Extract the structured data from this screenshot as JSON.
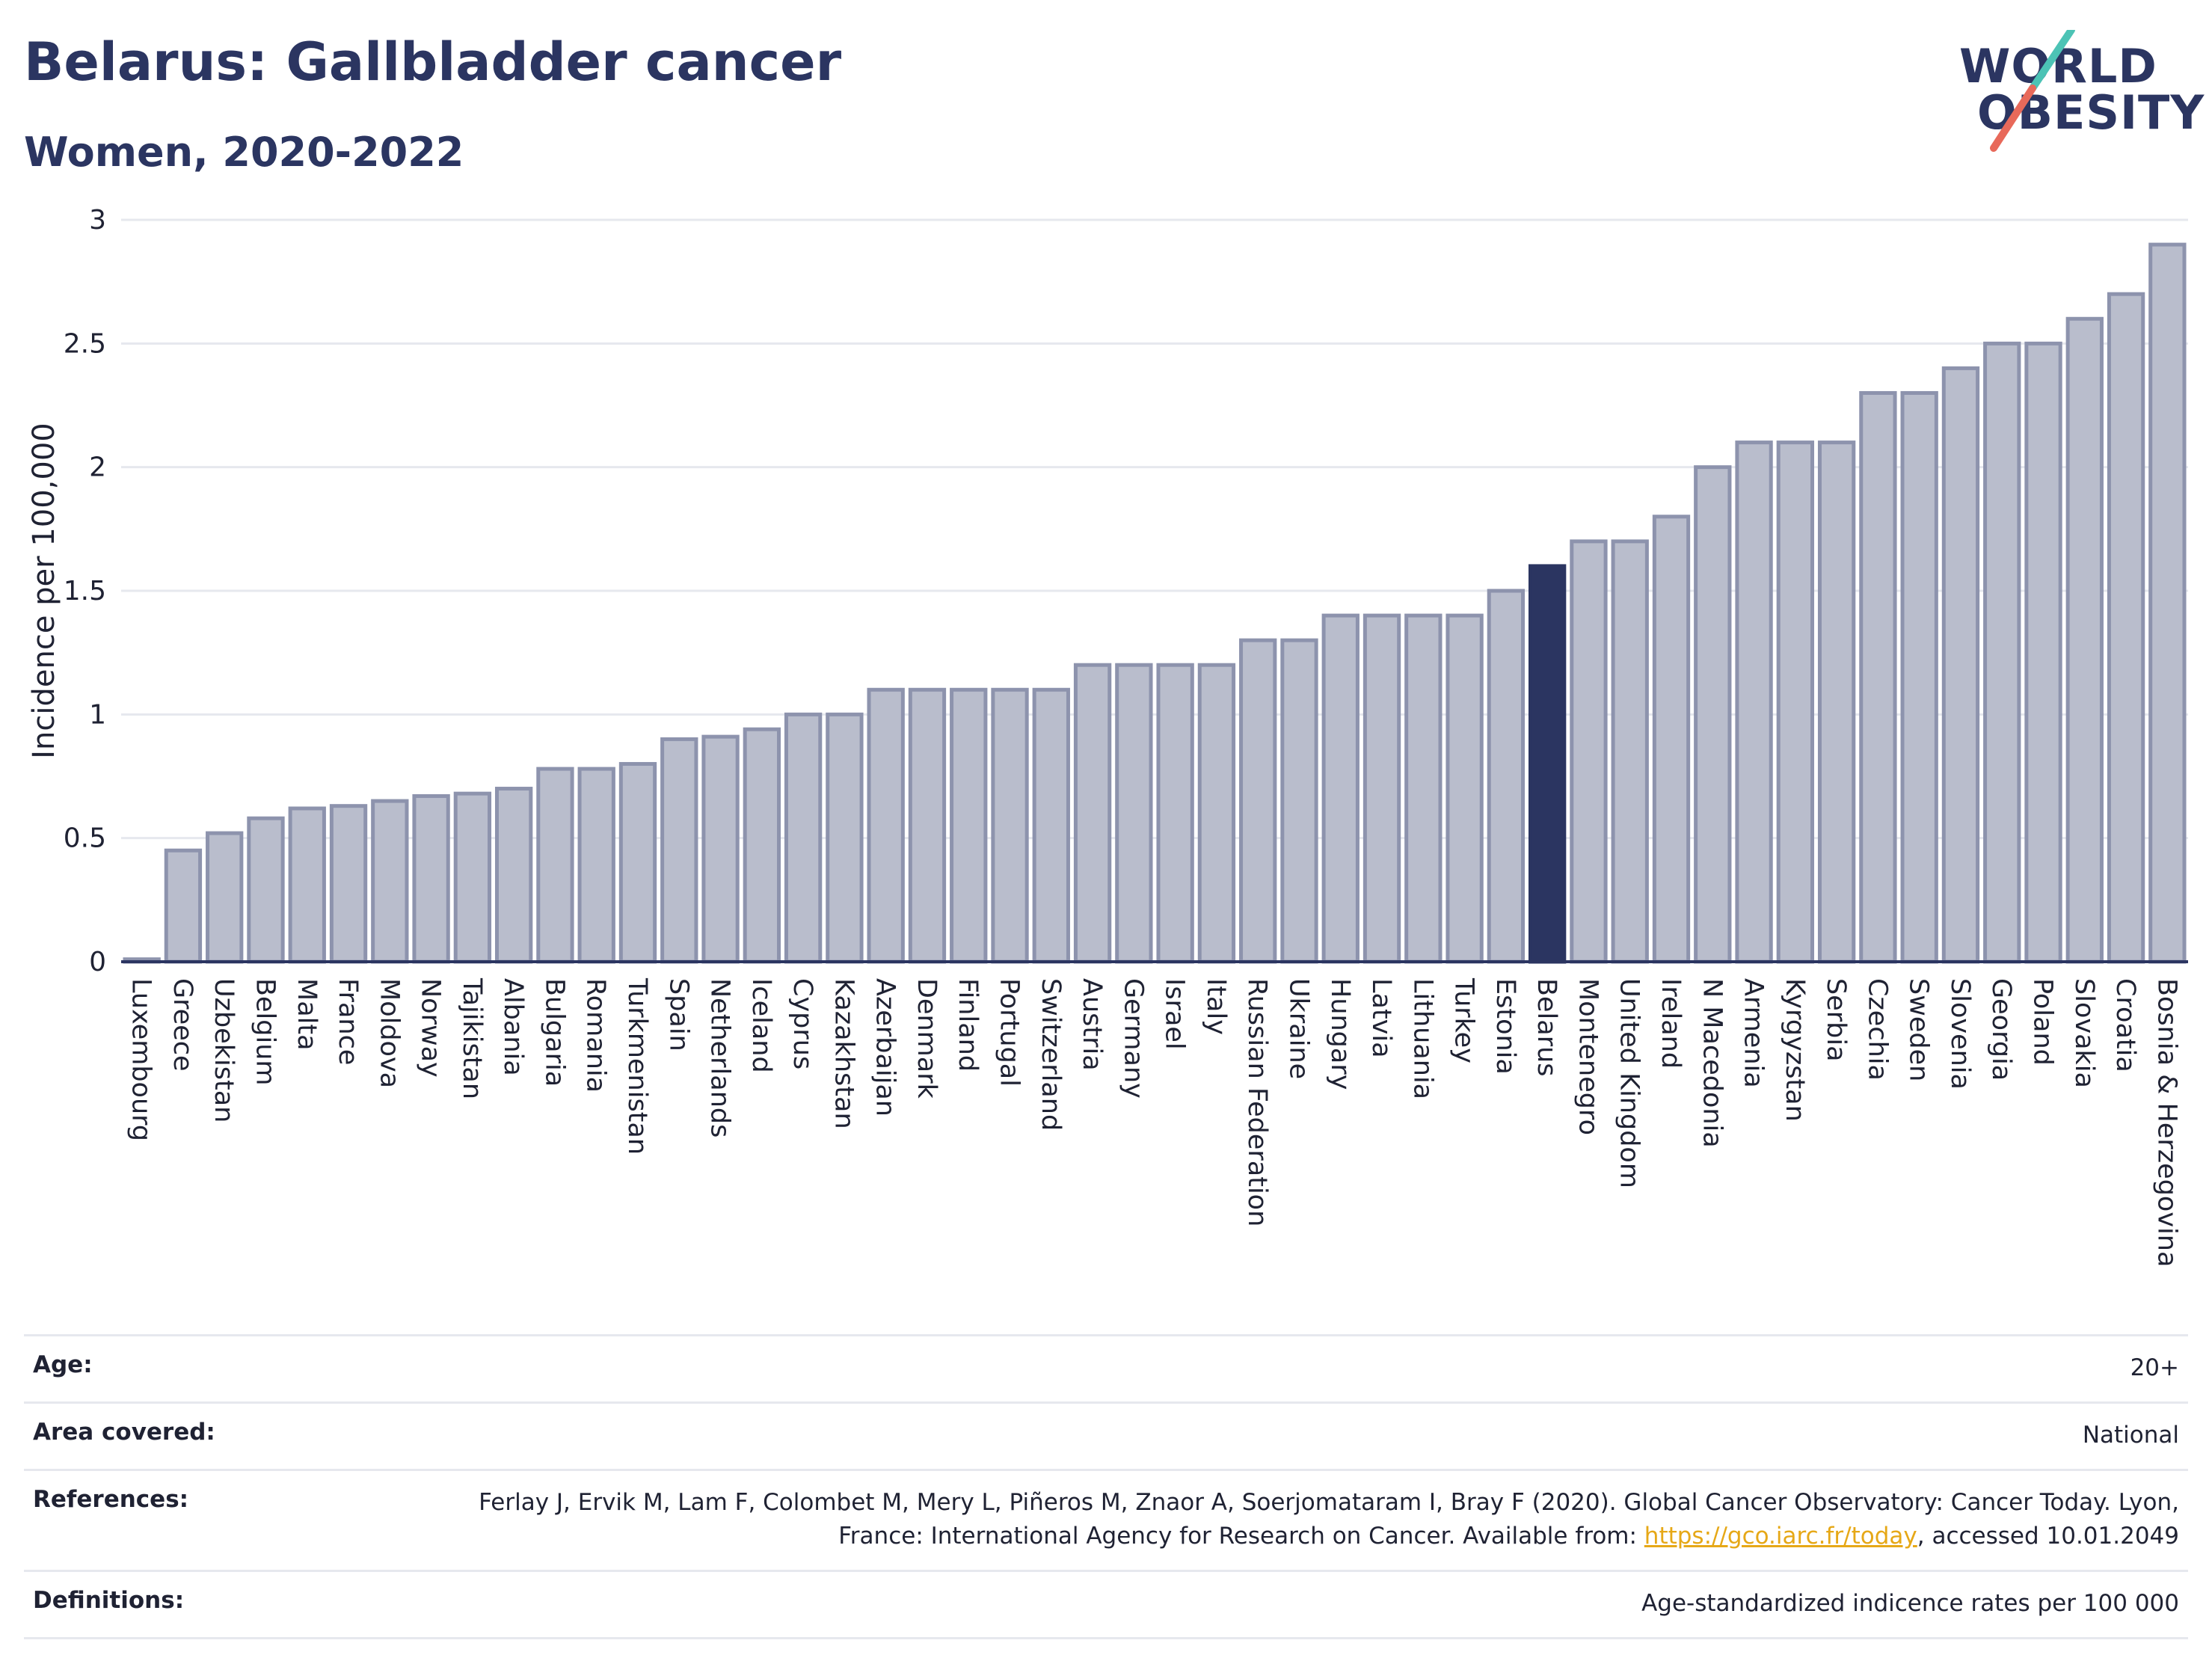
{
  "header": {
    "title": "Belarus: Gallbladder cancer",
    "subtitle": "Women, 2020-2022"
  },
  "logo": {
    "line1": "WORLD",
    "line2": "OBESITY",
    "slash_colors": [
      "#4cc3b5",
      "#e8695a"
    ]
  },
  "colors": {
    "bar": "#b9bdcc",
    "bar_border": "#8d93ad",
    "highlight": "#2b3561",
    "grid": "#e6e8ee",
    "axis_text": "#1f2233"
  },
  "chart_data": {
    "type": "bar",
    "ylabel": "Incidence per 100,000",
    "ylim": [
      0,
      3
    ],
    "yticks": [
      0,
      0.5,
      1,
      1.5,
      2,
      2.5,
      3
    ],
    "ytick_labels": [
      "0",
      "0.5",
      "1",
      "1.5",
      "2",
      "2.5",
      "3"
    ],
    "highlight": "Belarus",
    "grid": true,
    "categories": [
      "Luxembourg",
      "Greece",
      "Uzbekistan",
      "Belgium",
      "Malta",
      "France",
      "Moldova",
      "Norway",
      "Tajikistan",
      "Albania",
      "Bulgaria",
      "Romania",
      "Turkmenistan",
      "Spain",
      "Netherlands",
      "Iceland",
      "Cyprus",
      "Kazakhstan",
      "Azerbaijan",
      "Denmark",
      "Finland",
      "Portugal",
      "Switzerland",
      "Austria",
      "Germany",
      "Israel",
      "Italy",
      "Russian Federation",
      "Ukraine",
      "Hungary",
      "Latvia",
      "Lithuania",
      "Turkey",
      "Estonia",
      "Belarus",
      "Montenegro",
      "United Kingdom",
      "Ireland",
      "N Macedonia",
      "Armenia",
      "Kyrgyzstan",
      "Serbia",
      "Czechia",
      "Sweden",
      "Slovenia",
      "Georgia",
      "Poland",
      "Slovakia",
      "Croatia",
      "Bosnia & Herzegovina"
    ],
    "values": [
      0.01,
      0.45,
      0.52,
      0.58,
      0.62,
      0.63,
      0.65,
      0.67,
      0.68,
      0.7,
      0.78,
      0.78,
      0.8,
      0.9,
      0.91,
      0.94,
      1.0,
      1.0,
      1.1,
      1.1,
      1.1,
      1.1,
      1.1,
      1.2,
      1.2,
      1.2,
      1.2,
      1.3,
      1.3,
      1.4,
      1.4,
      1.4,
      1.4,
      1.5,
      1.6,
      1.7,
      1.7,
      1.8,
      2.0,
      2.1,
      2.1,
      2.1,
      2.3,
      2.3,
      2.4,
      2.5,
      2.5,
      2.6,
      2.7,
      2.9
    ]
  },
  "meta": {
    "age_label": "Age:",
    "age_value": "20+",
    "area_label": "Area covered:",
    "area_value": "National",
    "references_label": "References:",
    "references_text": "Ferlay J, Ervik M, Lam F, Colombet M, Mery L, Piñeros M, Znaor A, Soerjomataram I, Bray F (2020). Global Cancer Observatory: Cancer Today. Lyon, France: International Agency for Research on Cancer. Available from: ",
    "references_link": "https://gco.iarc.fr/today",
    "references_suffix": ", accessed 10.01.2049",
    "definitions_label": "Definitions:",
    "definitions_value": "Age-standardized indicence rates per 100 000"
  }
}
